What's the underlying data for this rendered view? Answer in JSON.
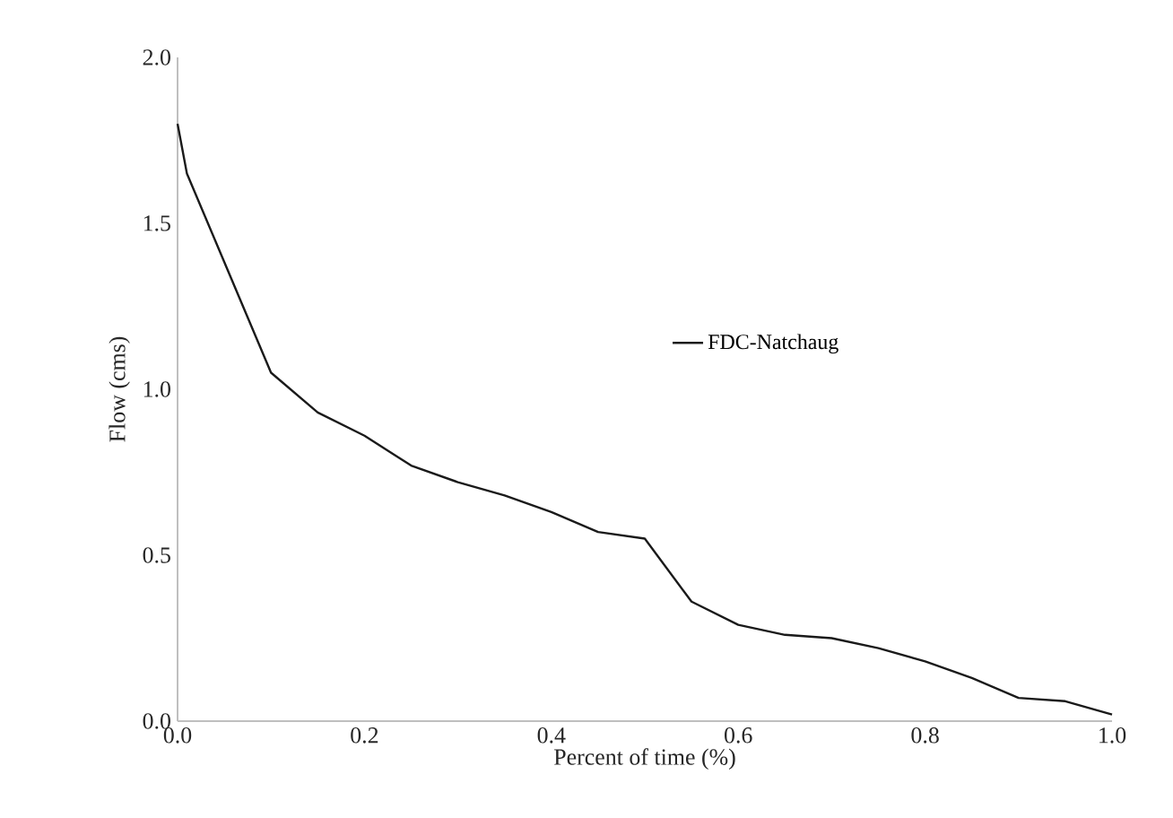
{
  "chart_data": {
    "type": "line",
    "xlabel": "Percent of time (%)",
    "ylabel": "Flow (cms)",
    "x": [
      0,
      0.01,
      0.1,
      0.15,
      0.2,
      0.25,
      0.3,
      0.35,
      0.4,
      0.45,
      0.5,
      0.55,
      0.6,
      0.65,
      0.7,
      0.75,
      0.8,
      0.85,
      0.9,
      0.95,
      1.0
    ],
    "series": [
      {
        "name": "FDC-Natchaug",
        "color": "#1a1a1a",
        "values": [
          1.8,
          1.65,
          1.05,
          0.93,
          0.86,
          0.77,
          0.72,
          0.68,
          0.63,
          0.57,
          0.55,
          0.36,
          0.29,
          0.26,
          0.25,
          0.22,
          0.18,
          0.13,
          0.07,
          0.06,
          0.02
        ]
      }
    ],
    "xlim": [
      0,
      1
    ],
    "ylim": [
      0,
      2
    ],
    "xticks": [
      {
        "value": 0,
        "label": "0.0"
      },
      0.2,
      0.4,
      0.6,
      0.8,
      {
        "value": 1,
        "label": "1.0"
      }
    ],
    "yticks": [
      {
        "value": 0,
        "label": "0.0"
      },
      0.5,
      {
        "value": 1,
        "label": "1.0"
      },
      1.5,
      {
        "value": 2,
        "label": "2.0"
      }
    ],
    "grid": false,
    "legend": "center",
    "marker": "none",
    "line_style": "solid"
  }
}
